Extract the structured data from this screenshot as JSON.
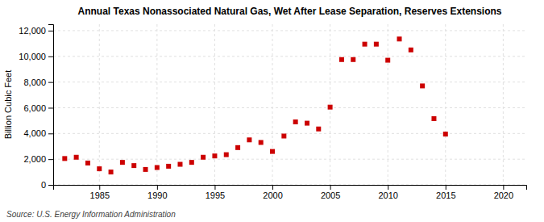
{
  "chart_data": {
    "type": "scatter",
    "title": "Annual Texas Nonassociated Natural Gas, Wet After Lease Separation, Reserves Extensions",
    "ylabel": "Billion Cubic Feet",
    "source": "Source: U.S. Energy Information Administration",
    "color": "#cc0000",
    "marker": "square",
    "grid": true,
    "x": [
      1982,
      1983,
      1984,
      1985,
      1986,
      1987,
      1988,
      1989,
      1990,
      1991,
      1992,
      1993,
      1994,
      1995,
      1996,
      1997,
      1998,
      1999,
      2000,
      2001,
      2002,
      2003,
      2004,
      2005,
      2006,
      2007,
      2008,
      2009,
      2010,
      2011,
      2012,
      2013,
      2014,
      2015
    ],
    "values": [
      2050,
      2150,
      1700,
      1250,
      1000,
      1750,
      1500,
      1200,
      1350,
      1450,
      1600,
      1750,
      2150,
      2250,
      2350,
      2900,
      3500,
      3300,
      2600,
      3800,
      4900,
      4800,
      4350,
      6050,
      9750,
      9750,
      10950,
      10950,
      9700,
      11350,
      10500,
      7700,
      5150,
      3950
    ],
    "xlim": [
      1981,
      2022
    ],
    "ylim": [
      0,
      12500
    ],
    "xticks": [
      1985,
      1990,
      1995,
      2000,
      2005,
      2010,
      2015,
      2020
    ],
    "yticks": [
      0,
      {
        "value": 2000,
        "label": "2,000"
      },
      {
        "value": 4000,
        "label": "4,000"
      },
      {
        "value": 6000,
        "label": "6,000"
      },
      {
        "value": 8000,
        "label": "8,000"
      },
      {
        "value": 10000,
        "label": "10,000"
      },
      {
        "value": 12000,
        "label": "12,000"
      }
    ]
  }
}
